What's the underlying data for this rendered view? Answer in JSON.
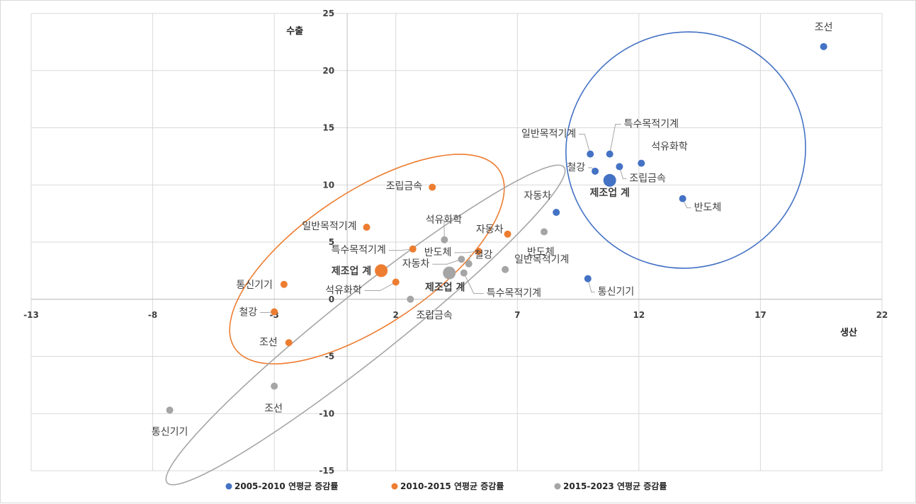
{
  "chart_data": {
    "type": "scatter",
    "title": "",
    "xlabel": "생산",
    "ylabel": "수출",
    "xlim": [
      -13,
      22
    ],
    "ylim": [
      -15,
      25
    ],
    "x_ticks": [
      -13,
      -8,
      -3,
      2,
      7,
      12,
      17,
      22
    ],
    "y_ticks": [
      -15,
      -10,
      -5,
      0,
      5,
      10,
      15,
      20,
      25
    ],
    "grid": true,
    "legend_position": "bottom",
    "series": [
      {
        "name": "2005-2010 연평균 증감률",
        "color": "#4472c4",
        "points": [
          {
            "label": "조선",
            "x": 19.6,
            "y": 22.1
          },
          {
            "label": "특수목적기계",
            "x": 10.8,
            "y": 12.7
          },
          {
            "label": "일반목적기계",
            "x": 10.0,
            "y": 12.7
          },
          {
            "label": "석유화학",
            "x": 12.1,
            "y": 11.9
          },
          {
            "label": "철강",
            "x": 10.2,
            "y": 11.2
          },
          {
            "label": "조립금속",
            "x": 11.2,
            "y": 11.6
          },
          {
            "label": "제조업 계",
            "x": 10.8,
            "y": 10.4,
            "total": true
          },
          {
            "label": "반도체",
            "x": 13.8,
            "y": 8.8
          },
          {
            "label": "자동차",
            "x": 8.6,
            "y": 7.6
          },
          {
            "label": "통신기기",
            "x": 9.9,
            "y": 1.8
          }
        ]
      },
      {
        "name": "2010-2015 연평균 증감률",
        "color": "#ed7d31",
        "points": [
          {
            "label": "조립금속",
            "x": 3.5,
            "y": 9.8
          },
          {
            "label": "일반목적기계",
            "x": 0.8,
            "y": 6.3
          },
          {
            "label": "자동차",
            "x": 6.6,
            "y": 5.7
          },
          {
            "label": "특수목적기계",
            "x": 2.7,
            "y": 4.4
          },
          {
            "label": "반도체",
            "x": 5.4,
            "y": 4.2
          },
          {
            "label": "제조업 계",
            "x": 1.4,
            "y": 2.5,
            "total": true
          },
          {
            "label": "석유화학",
            "x": 2.0,
            "y": 1.5
          },
          {
            "label": "통신기기",
            "x": -2.6,
            "y": 1.3
          },
          {
            "label": "철강",
            "x": -3.0,
            "y": -1.1
          },
          {
            "label": "조선",
            "x": -2.4,
            "y": -3.8
          }
        ]
      },
      {
        "name": "2015-2023 연평균 증감률",
        "color": "#a5a5a5",
        "points": [
          {
            "label": "석유화학",
            "x": 4.0,
            "y": 5.2
          },
          {
            "label": "반도체",
            "x": 8.1,
            "y": 5.9
          },
          {
            "label": "자동차",
            "x": 4.7,
            "y": 3.5
          },
          {
            "label": "철강",
            "x": 5.0,
            "y": 3.1
          },
          {
            "label": "일반목적기계",
            "x": 6.5,
            "y": 2.6
          },
          {
            "label": "제조업 계",
            "x": 4.2,
            "y": 2.3,
            "total": true
          },
          {
            "label": "특수목적기계",
            "x": 4.8,
            "y": 2.3
          },
          {
            "label": "조립금속",
            "x": 2.6,
            "y": 0.0
          },
          {
            "label": "조선",
            "x": -3.0,
            "y": -7.6
          },
          {
            "label": "통신기기",
            "x": -7.3,
            "y": -9.7
          }
        ]
      }
    ]
  }
}
